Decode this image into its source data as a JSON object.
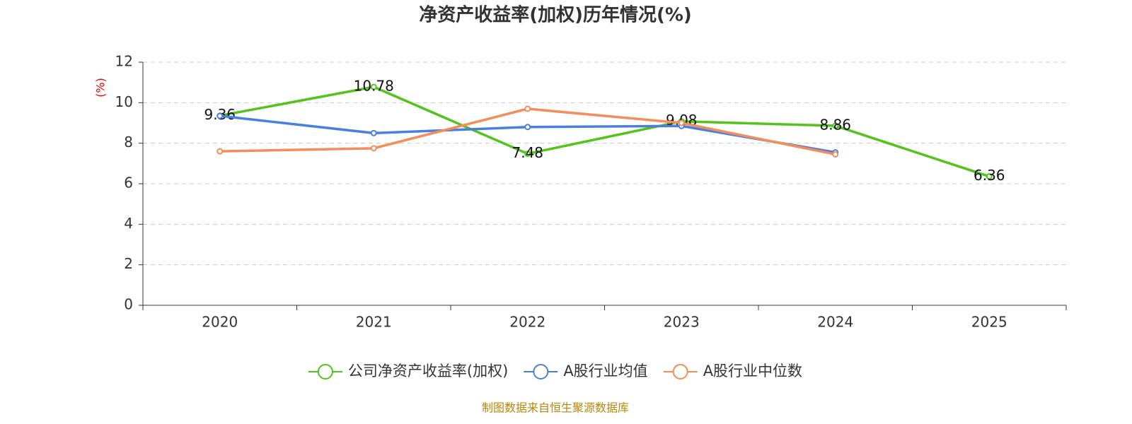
{
  "chart_data": {
    "type": "line",
    "title": "净资产收益率(加权)历年情况(%)",
    "y_label": "(%)",
    "source": "制图数据来自恒生聚源数据库",
    "categories": [
      "2020",
      "2021",
      "2022",
      "2023",
      "2024",
      "2025"
    ],
    "series": [
      {
        "name": "公司净资产收益率(加权)",
        "color": "#52c41a",
        "labels": true,
        "values": [
          9.36,
          10.78,
          7.48,
          9.08,
          8.86,
          6.36
        ]
      },
      {
        "name": "A股行业均值",
        "color": "#4a7fe0",
        "labels": false,
        "values": [
          9.35,
          8.5,
          8.8,
          8.85,
          7.55,
          null
        ]
      },
      {
        "name": "A股行业中位数",
        "color": "#f58d5a",
        "labels": false,
        "values": [
          7.6,
          7.75,
          9.7,
          9.0,
          7.45,
          null
        ]
      }
    ],
    "ylim": [
      0,
      12
    ],
    "yticks": [
      0,
      2,
      4,
      6,
      8,
      10,
      12
    ],
    "grid": true
  }
}
